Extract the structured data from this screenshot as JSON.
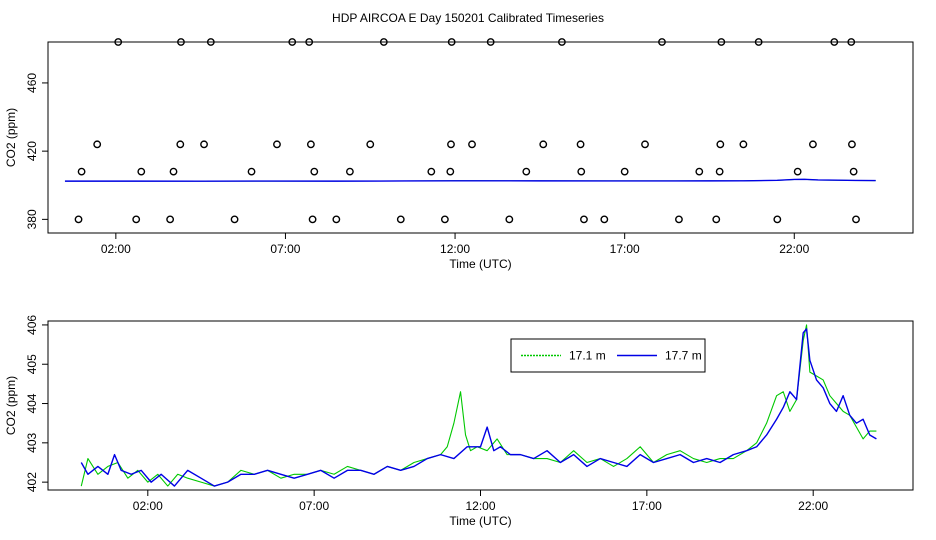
{
  "title": "HDP AIRCOA E  Day 150201  Calibrated Timeseries",
  "colors": {
    "series_a": "#00c800",
    "series_b": "#0000e6",
    "frame": "#000000"
  },
  "chart_data": [
    {
      "type": "scatter",
      "xlabel": "Time (UTC)",
      "ylabel": "CO2 (ppm)",
      "xlim": [
        0,
        25.5
      ],
      "ylim": [
        372,
        484
      ],
      "x_ticks": [
        2,
        7,
        12,
        17,
        22
      ],
      "x_tick_labels": [
        "02:00",
        "07:00",
        "12:00",
        "17:00",
        "22:00"
      ],
      "y_ticks": [
        380,
        420,
        460
      ],
      "y_tick_labels": [
        "380",
        "420",
        "460"
      ],
      "points_x": [
        0.9,
        0.99,
        1.45,
        2.07,
        2.6,
        2.75,
        3.6,
        3.7,
        3.9,
        3.92,
        4.6,
        4.8,
        5.5,
        6.0,
        6.75,
        7.2,
        7.7,
        7.75,
        7.8,
        7.85,
        8.5,
        8.9,
        9.5,
        9.9,
        10.4,
        11.3,
        11.7,
        11.86,
        11.88,
        11.9,
        12.5,
        13.05,
        13.6,
        14.1,
        14.6,
        15.15,
        15.7,
        15.72,
        15.8,
        16.4,
        17.0,
        17.6,
        18.1,
        18.6,
        19.2,
        19.7,
        19.8,
        19.82,
        19.85,
        20.5,
        20.95,
        21.5,
        22.1,
        22.55,
        23.18,
        23.68,
        23.7,
        23.75,
        23.82
      ],
      "points_y": [
        380,
        408,
        424,
        484,
        380,
        408,
        380,
        408,
        424,
        484,
        424,
        484,
        380,
        408,
        424,
        484,
        484,
        424,
        380,
        408,
        380,
        408,
        424,
        484,
        380,
        408,
        380,
        408,
        424,
        484,
        424,
        484,
        380,
        408,
        424,
        484,
        424,
        408,
        380,
        380,
        408,
        424,
        484,
        380,
        408,
        380,
        408,
        424,
        484,
        424,
        484,
        380,
        408,
        424,
        484,
        484,
        424,
        408,
        380
      ],
      "baseline": {
        "name": "17.7 m",
        "x": [
          0,
          2,
          4,
          6,
          8,
          10,
          11.5,
          12,
          14,
          16,
          18,
          19,
          20,
          21,
          21.5,
          21.8,
          22.2,
          22.8,
          23.3,
          23.9
        ],
        "y": [
          402.2,
          402.2,
          402.1,
          402.3,
          402.2,
          402.5,
          402.9,
          402.9,
          402.7,
          402.6,
          402.6,
          402.7,
          402.8,
          403.8,
          405.5,
          405.8,
          404.5,
          404.0,
          403.5,
          403.3
        ]
      }
    },
    {
      "type": "line",
      "xlabel": "Time (UTC)",
      "ylabel": "CO2 (ppm)",
      "xlim": [
        -1.0,
        25.0
      ],
      "ylim": [
        401.8,
        406.1
      ],
      "x_ticks": [
        2,
        7,
        12,
        17,
        22
      ],
      "x_tick_labels": [
        "02:00",
        "07:00",
        "12:00",
        "17:00",
        "22:00"
      ],
      "y_ticks": [
        402,
        403,
        404,
        405,
        406
      ],
      "y_tick_labels": [
        "402",
        "403",
        "404",
        "405",
        "406"
      ],
      "legend": "top-center",
      "series": [
        {
          "name": "17.1 m",
          "color": "#00c800",
          "x": [
            0.0,
            0.2,
            0.5,
            0.8,
            1.1,
            1.4,
            1.7,
            2.0,
            2.3,
            2.6,
            2.9,
            3.2,
            3.6,
            4.0,
            4.4,
            4.8,
            5.2,
            5.6,
            6.0,
            6.4,
            6.8,
            7.2,
            7.6,
            8.0,
            8.4,
            8.8,
            9.2,
            9.6,
            10.0,
            10.4,
            10.8,
            11.0,
            11.2,
            11.4,
            11.55,
            11.7,
            11.9,
            12.2,
            12.5,
            12.8,
            13.2,
            13.6,
            14.0,
            14.4,
            14.8,
            15.2,
            15.6,
            16.0,
            16.4,
            16.8,
            17.2,
            17.6,
            18.0,
            18.4,
            18.8,
            19.2,
            19.6,
            20.0,
            20.3,
            20.6,
            20.9,
            21.1,
            21.3,
            21.5,
            21.7,
            21.8,
            21.9,
            22.1,
            22.3,
            22.5,
            22.7,
            22.9,
            23.1,
            23.3,
            23.5,
            23.7,
            23.9
          ],
          "y": [
            401.9,
            402.6,
            402.2,
            402.4,
            402.5,
            402.1,
            402.3,
            402.0,
            402.2,
            401.9,
            402.2,
            402.1,
            402.0,
            401.9,
            402.0,
            402.3,
            402.2,
            402.3,
            402.1,
            402.2,
            402.2,
            402.3,
            402.2,
            402.4,
            402.3,
            402.2,
            402.4,
            402.3,
            402.5,
            402.6,
            402.7,
            402.9,
            403.5,
            404.3,
            403.2,
            402.8,
            402.9,
            402.8,
            403.1,
            402.7,
            402.7,
            402.6,
            402.6,
            402.5,
            402.8,
            402.5,
            402.6,
            402.4,
            402.6,
            402.9,
            402.5,
            402.7,
            402.8,
            402.6,
            402.5,
            402.6,
            402.6,
            402.8,
            403.0,
            403.5,
            404.2,
            404.3,
            403.8,
            404.1,
            405.6,
            406.0,
            404.8,
            404.7,
            404.6,
            404.2,
            404.0,
            403.8,
            403.7,
            403.4,
            403.1,
            403.3,
            403.3
          ]
        },
        {
          "name": "17.7 m",
          "color": "#0000e6",
          "x": [
            0.0,
            0.2,
            0.5,
            0.8,
            1.0,
            1.2,
            1.5,
            1.8,
            2.1,
            2.4,
            2.8,
            3.2,
            3.6,
            4.0,
            4.4,
            4.8,
            5.2,
            5.6,
            6.0,
            6.4,
            6.8,
            7.2,
            7.6,
            8.0,
            8.4,
            8.8,
            9.2,
            9.6,
            10.0,
            10.4,
            10.8,
            11.2,
            11.6,
            12.0,
            12.2,
            12.4,
            12.6,
            12.9,
            13.2,
            13.6,
            14.0,
            14.4,
            14.8,
            15.2,
            15.6,
            16.0,
            16.4,
            16.8,
            17.2,
            17.6,
            18.0,
            18.4,
            18.8,
            19.2,
            19.6,
            20.0,
            20.3,
            20.6,
            20.9,
            21.1,
            21.3,
            21.5,
            21.7,
            21.8,
            21.9,
            22.1,
            22.3,
            22.5,
            22.7,
            22.9,
            23.1,
            23.3,
            23.5,
            23.7,
            23.9
          ],
          "y": [
            402.5,
            402.2,
            402.4,
            402.2,
            402.7,
            402.3,
            402.2,
            402.3,
            402.0,
            402.2,
            401.9,
            402.3,
            402.1,
            401.9,
            402.0,
            402.2,
            402.2,
            402.3,
            402.2,
            402.1,
            402.2,
            402.3,
            402.1,
            402.3,
            402.3,
            402.2,
            402.4,
            402.3,
            402.4,
            402.6,
            402.7,
            402.6,
            402.9,
            402.9,
            403.4,
            402.8,
            402.9,
            402.7,
            402.7,
            402.6,
            402.8,
            402.5,
            402.7,
            402.4,
            402.6,
            402.5,
            402.4,
            402.7,
            402.5,
            402.6,
            402.7,
            402.5,
            402.6,
            402.5,
            402.7,
            402.8,
            402.9,
            403.2,
            403.6,
            403.9,
            404.3,
            404.1,
            405.8,
            405.9,
            405.1,
            404.6,
            404.4,
            404.0,
            403.8,
            404.2,
            403.7,
            403.5,
            403.6,
            403.2,
            403.1
          ]
        }
      ]
    }
  ]
}
